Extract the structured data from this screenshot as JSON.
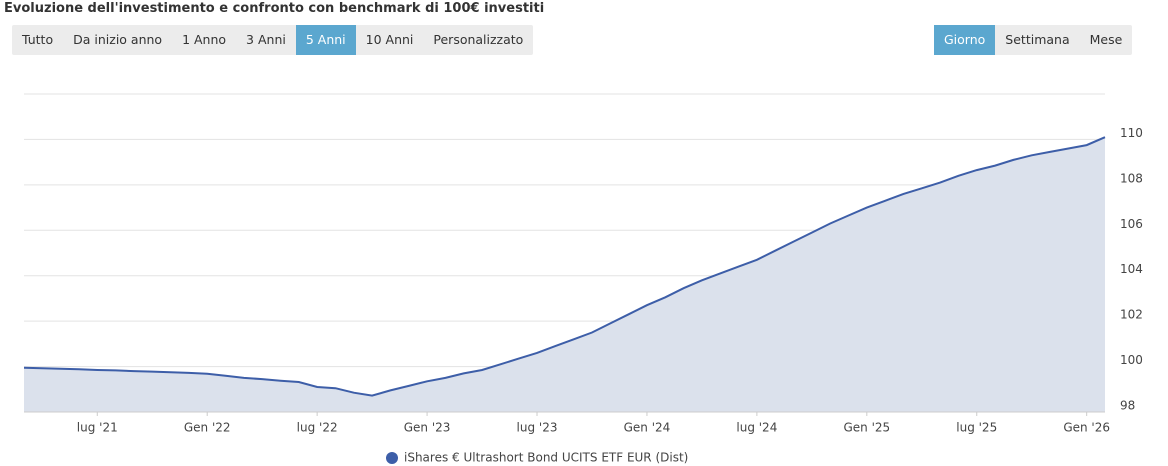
{
  "chart_data": {
    "type": "area",
    "title": "Evoluzione dell'investimento e confronto con benchmark di 100€ investiti",
    "range_buttons": {
      "options": [
        "Tutto",
        "Da inizio anno",
        "1 Anno",
        "3 Anni",
        "5 Anni",
        "10 Anni",
        "Personalizzato"
      ],
      "selected": 4
    },
    "granularity_buttons": {
      "options": [
        "Giorno",
        "Settimana",
        "Mese"
      ],
      "selected": 0
    },
    "x": [
      "2021-03",
      "2021-04",
      "2021-05",
      "2021-06",
      "2021-07",
      "2021-08",
      "2021-09",
      "2021-10",
      "2021-11",
      "2021-12",
      "2022-01",
      "2022-02",
      "2022-03",
      "2022-04",
      "2022-05",
      "2022-06",
      "2022-07",
      "2022-08",
      "2022-09",
      "2022-10",
      "2022-11",
      "2022-12",
      "2023-01",
      "2023-02",
      "2023-03",
      "2023-04",
      "2023-05",
      "2023-06",
      "2023-07",
      "2023-08",
      "2023-09",
      "2023-10",
      "2023-11",
      "2023-12",
      "2024-01",
      "2024-02",
      "2024-03",
      "2024-04",
      "2024-05",
      "2024-06",
      "2024-07",
      "2024-08",
      "2024-09",
      "2024-10",
      "2024-11",
      "2024-12",
      "2025-01",
      "2025-02",
      "2025-03",
      "2025-04",
      "2025-05",
      "2025-06",
      "2025-07",
      "2025-08",
      "2025-09",
      "2025-10",
      "2025-11",
      "2025-12",
      "2026-01",
      "2026-02"
    ],
    "series": [
      {
        "name": "iShares € Ultrashort Bond UCITS ETF EUR (Dist)",
        "color": "#3d5ea8",
        "fill": "#dbe1ec",
        "values": [
          99.95,
          99.93,
          99.9,
          99.88,
          99.85,
          99.83,
          99.8,
          99.78,
          99.75,
          99.72,
          99.68,
          99.6,
          99.5,
          99.45,
          99.38,
          99.32,
          99.1,
          99.05,
          98.85,
          98.72,
          98.95,
          99.15,
          99.35,
          99.5,
          99.7,
          99.85,
          100.1,
          100.35,
          100.6,
          100.9,
          101.2,
          101.5,
          101.9,
          102.3,
          102.7,
          103.05,
          103.45,
          103.8,
          104.1,
          104.4,
          104.7,
          105.1,
          105.5,
          105.9,
          106.3,
          106.65,
          107.0,
          107.3,
          107.6,
          107.85,
          108.1,
          108.4,
          108.65,
          108.85,
          109.1,
          109.3,
          109.45,
          109.6,
          109.75,
          110.1
        ]
      }
    ],
    "xlim": [
      "2021-03",
      "2026-02"
    ],
    "xticks": [
      {
        "value": "2021-07",
        "label": "lug '21"
      },
      {
        "value": "2022-01",
        "label": "Gen '22"
      },
      {
        "value": "2022-07",
        "label": "lug '22"
      },
      {
        "value": "2023-01",
        "label": "Gen '23"
      },
      {
        "value": "2023-07",
        "label": "lug '23"
      },
      {
        "value": "2024-01",
        "label": "Gen '24"
      },
      {
        "value": "2024-07",
        "label": "lug '24"
      },
      {
        "value": "2025-01",
        "label": "Gen '25"
      },
      {
        "value": "2025-07",
        "label": "lug '25"
      },
      {
        "value": "2026-01",
        "label": "Gen '26"
      }
    ],
    "ylim": [
      98,
      112
    ],
    "yticks": [
      98,
      100,
      102,
      104,
      106,
      108,
      110
    ],
    "grid": true
  }
}
